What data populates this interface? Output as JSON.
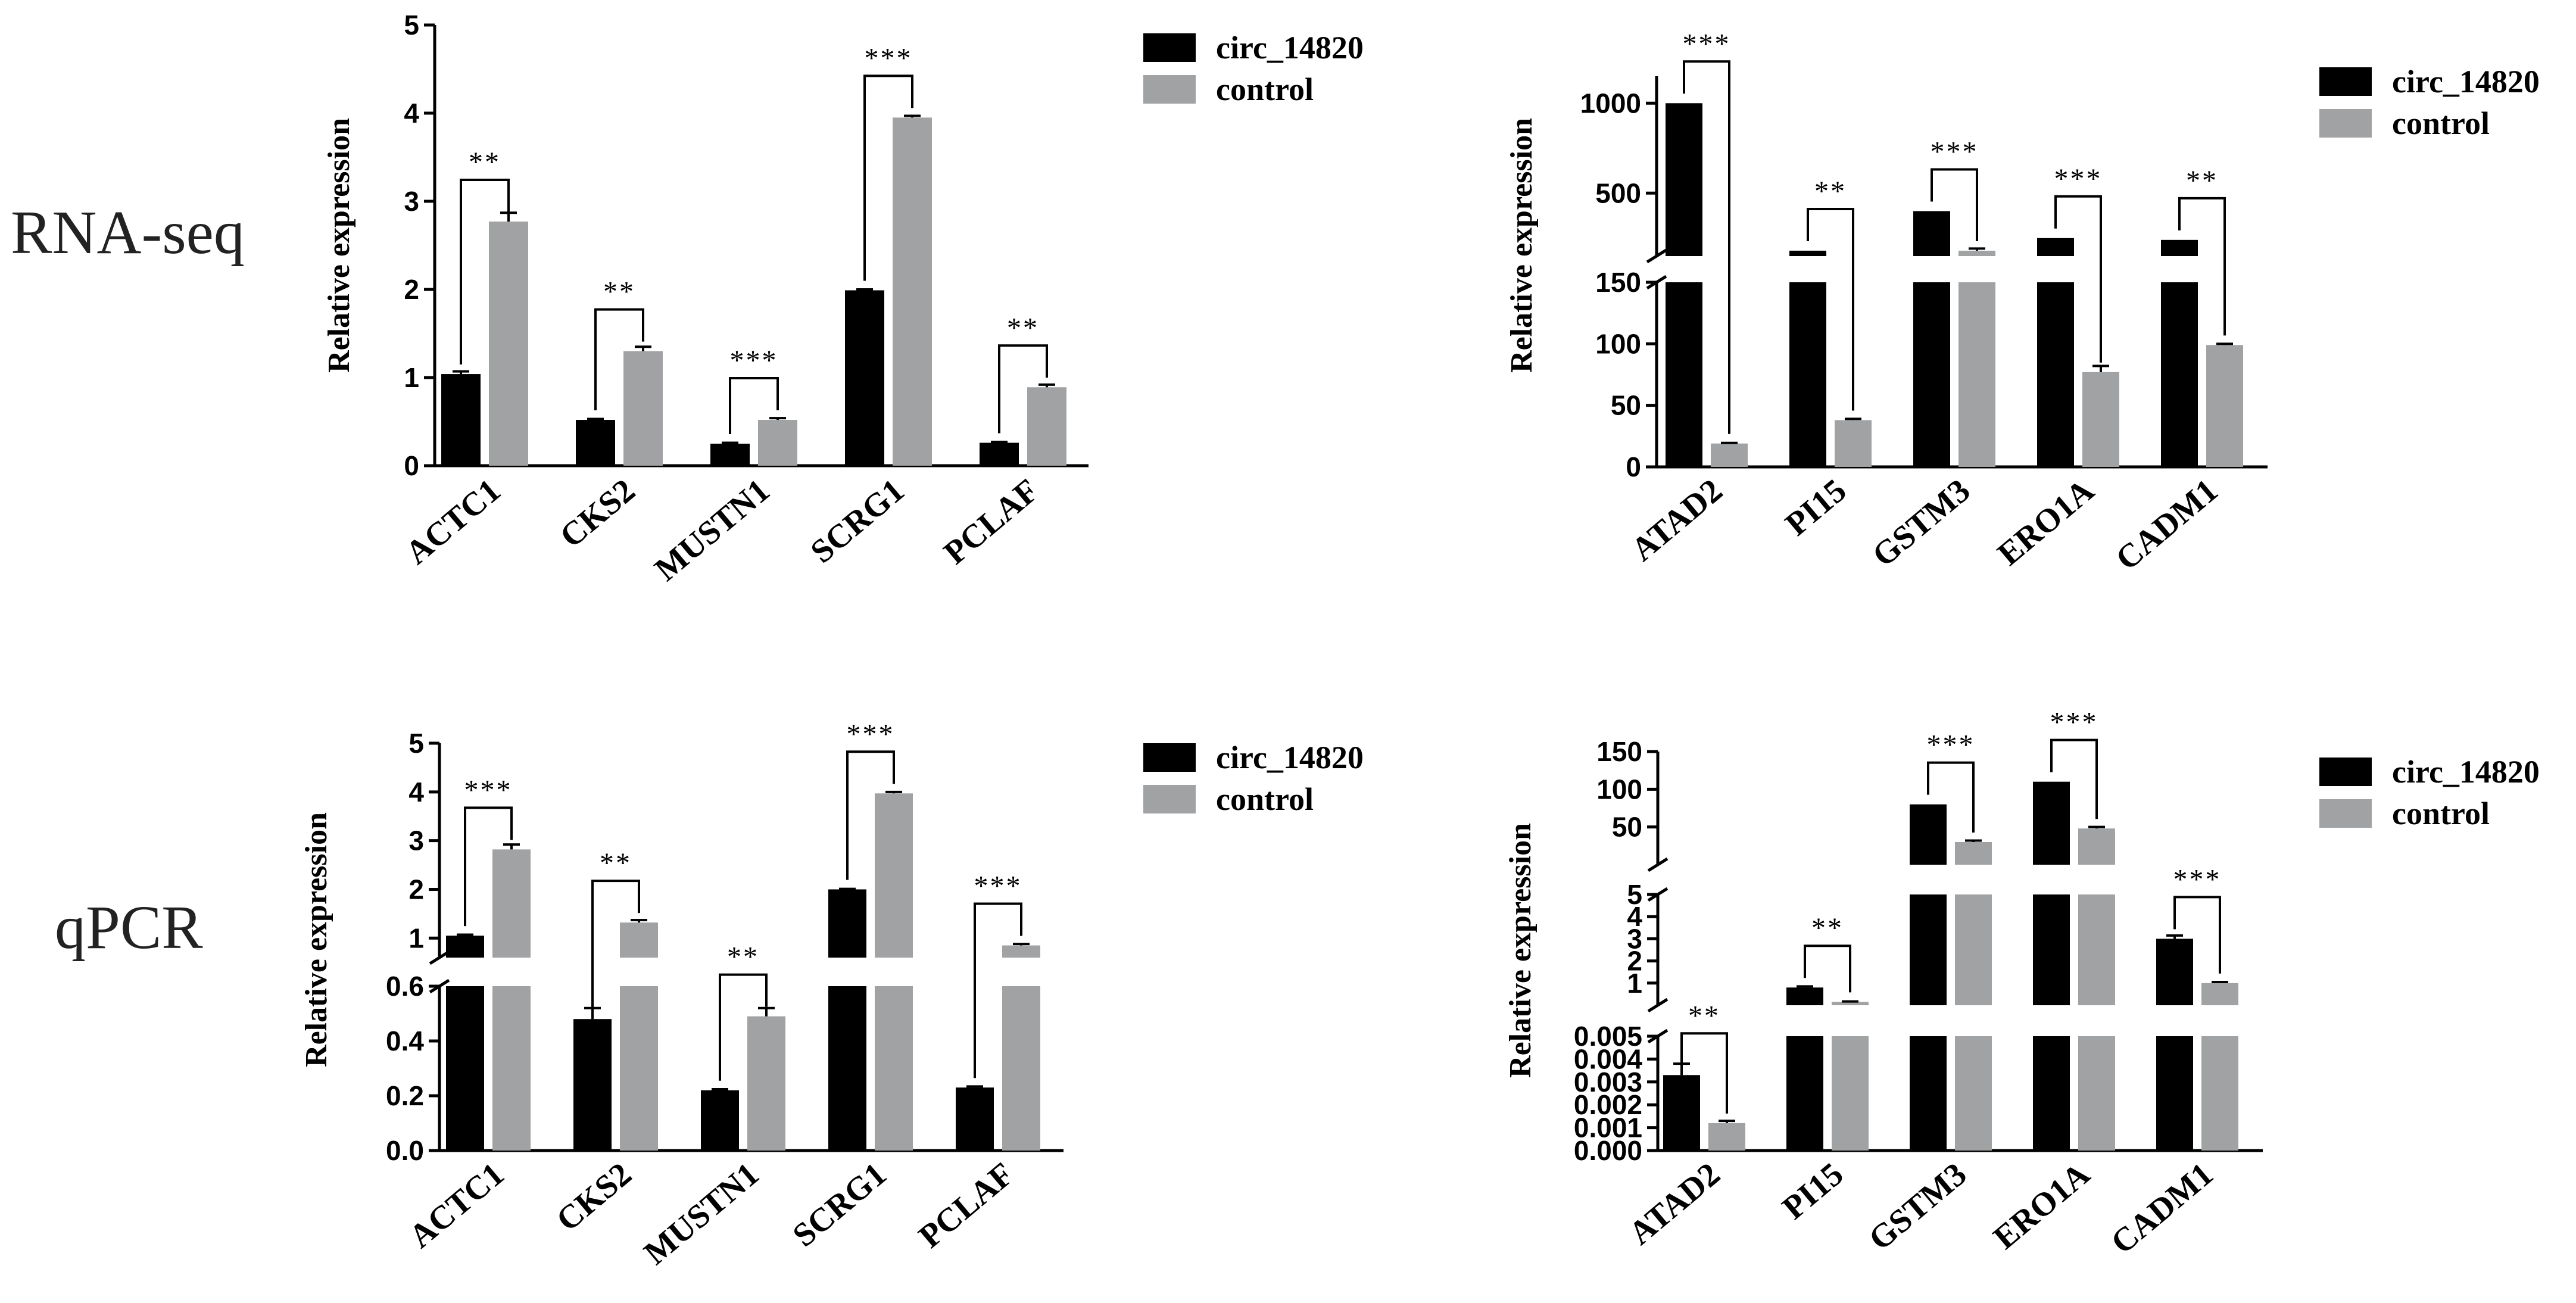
{
  "figure": {
    "row_labels": [
      "RNA-seq",
      "qPCR"
    ],
    "colors": {
      "circ": "#000000",
      "control": "#a0a2a3",
      "axis": "#000000"
    }
  },
  "chart_data": [
    {
      "type": "bar",
      "id": "rnaseq-left",
      "ylabel": "Relative expression",
      "categories": [
        "ACTC1",
        "CKS2",
        "MUSTN1",
        "SCRG1",
        "PCLAF"
      ],
      "legend": [
        "circ_14820",
        "control"
      ],
      "series": [
        {
          "name": "circ_14820",
          "values": [
            1.04,
            0.52,
            0.25,
            1.99,
            0.26
          ],
          "errors": [
            0.03,
            0.01,
            0.01,
            0.01,
            0.01
          ]
        },
        {
          "name": "control",
          "values": [
            2.77,
            1.3,
            0.52,
            3.95,
            0.89
          ],
          "errors": [
            0.1,
            0.05,
            0.02,
            0.02,
            0.03
          ]
        }
      ],
      "significance": [
        "**",
        "**",
        "***",
        "***",
        "**"
      ],
      "y_segments": [
        {
          "range": [
            0,
            5
          ],
          "ticks": [
            0,
            1,
            2,
            3,
            4,
            5
          ]
        }
      ],
      "legend_position": "right"
    },
    {
      "type": "bar",
      "id": "rnaseq-right",
      "ylabel": "Relative expression",
      "categories": [
        "ATAD2",
        "PI15",
        "GSTM3",
        "ERO1A",
        "CADM1"
      ],
      "legend": [
        "circ_14820",
        "control"
      ],
      "series": [
        {
          "name": "circ_14820",
          "values": [
            1000,
            180,
            400,
            250,
            240
          ],
          "errors": [
            0,
            0,
            0,
            0,
            0
          ]
        },
        {
          "name": "control",
          "values": [
            19,
            38,
            180,
            77,
            99
          ],
          "errors": [
            0.5,
            1,
            12,
            5,
            1
          ]
        }
      ],
      "significance": [
        "***",
        "**",
        "***",
        "***",
        "**"
      ],
      "y_segments": [
        {
          "range": [
            0,
            150
          ],
          "ticks": [
            0,
            50,
            100,
            150
          ]
        },
        {
          "range": [
            150,
            1150
          ],
          "ticks": [
            500,
            1000
          ]
        }
      ],
      "legend_position": "right"
    },
    {
      "type": "bar",
      "id": "qpcr-left",
      "ylabel": "Relative expression",
      "categories": [
        "ACTC1",
        "CKS2",
        "MUSTN1",
        "SCRG1",
        "PCLAF"
      ],
      "legend": [
        "circ_14820",
        "control"
      ],
      "series": [
        {
          "name": "circ_14820",
          "values": [
            1.05,
            0.48,
            0.22,
            2.0,
            0.23
          ],
          "errors": [
            0.02,
            0.04,
            0.004,
            0.01,
            0.004
          ]
        },
        {
          "name": "control",
          "values": [
            2.82,
            1.32,
            0.49,
            3.97,
            0.85
          ],
          "errors": [
            0.1,
            0.05,
            0.03,
            0.03,
            0.03
          ]
        }
      ],
      "significance": [
        "***",
        "**",
        "**",
        "***",
        "***"
      ],
      "y_segments": [
        {
          "range": [
            0,
            0.6
          ],
          "ticks": [
            "0.0",
            "0.2",
            "0.4",
            "0.6"
          ]
        },
        {
          "range": [
            0.6,
            5
          ],
          "ticks": [
            1,
            2,
            3,
            4,
            5
          ]
        }
      ],
      "legend_position": "right"
    },
    {
      "type": "bar",
      "id": "qpcr-right",
      "ylabel": "Relative expression",
      "categories": [
        "ATAD2",
        "PI15",
        "GSTM3",
        "ERO1A",
        "CADM1"
      ],
      "legend": [
        "circ_14820",
        "control"
      ],
      "series": [
        {
          "name": "circ_14820",
          "values": [
            0.0033,
            0.8,
            80,
            110,
            3.0
          ],
          "errors": [
            0.0005,
            0.05,
            0,
            0,
            0.15
          ]
        },
        {
          "name": "control",
          "values": [
            0.0012,
            0.15,
            30,
            48,
            1.0
          ],
          "errors": [
            0.0001,
            0.02,
            2,
            2,
            0.05
          ]
        }
      ],
      "significance": [
        "**",
        "**",
        "***",
        "***",
        "***"
      ],
      "y_segments": [
        {
          "range": [
            0,
            0.005
          ],
          "ticks": [
            "0.000",
            "0.001",
            "0.002",
            "0.003",
            "0.004",
            "0.005"
          ]
        },
        {
          "range": [
            0,
            5
          ],
          "ticks": [
            1,
            2,
            3,
            4,
            5
          ]
        },
        {
          "range": [
            0,
            150
          ],
          "ticks": [
            50,
            100,
            150
          ]
        }
      ],
      "legend_position": "right"
    }
  ]
}
